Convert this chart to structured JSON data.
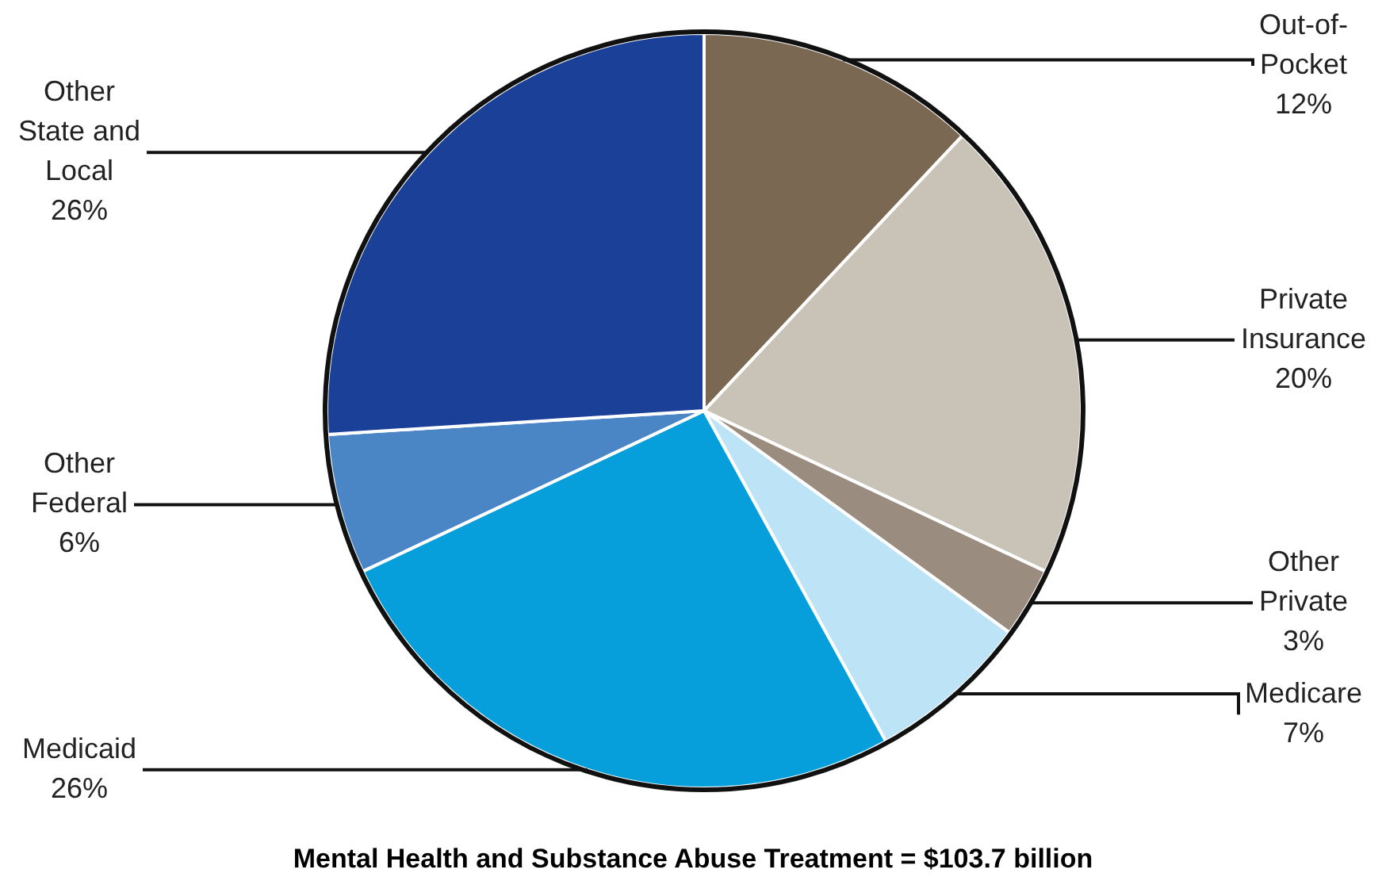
{
  "chart_data": {
    "type": "pie",
    "title": "Mental Health and Substance Abuse Treatment = $103.7 billion",
    "categories": [
      "Out-of-Pocket",
      "Private Insurance",
      "Other Private",
      "Medicare",
      "Medicaid",
      "Other Federal",
      "Other State and Local"
    ],
    "values": [
      12,
      20,
      3,
      7,
      26,
      6,
      26
    ],
    "value_labels": [
      "12%",
      "20%",
      "3%",
      "7%",
      "26%",
      "6%",
      "26%"
    ],
    "colors": [
      "#7a6852",
      "#c9c2b7",
      "#9a8c7e",
      "#bde3f6",
      "#069fdc",
      "#4a86c5",
      "#1a4098"
    ],
    "legend": false
  }
}
